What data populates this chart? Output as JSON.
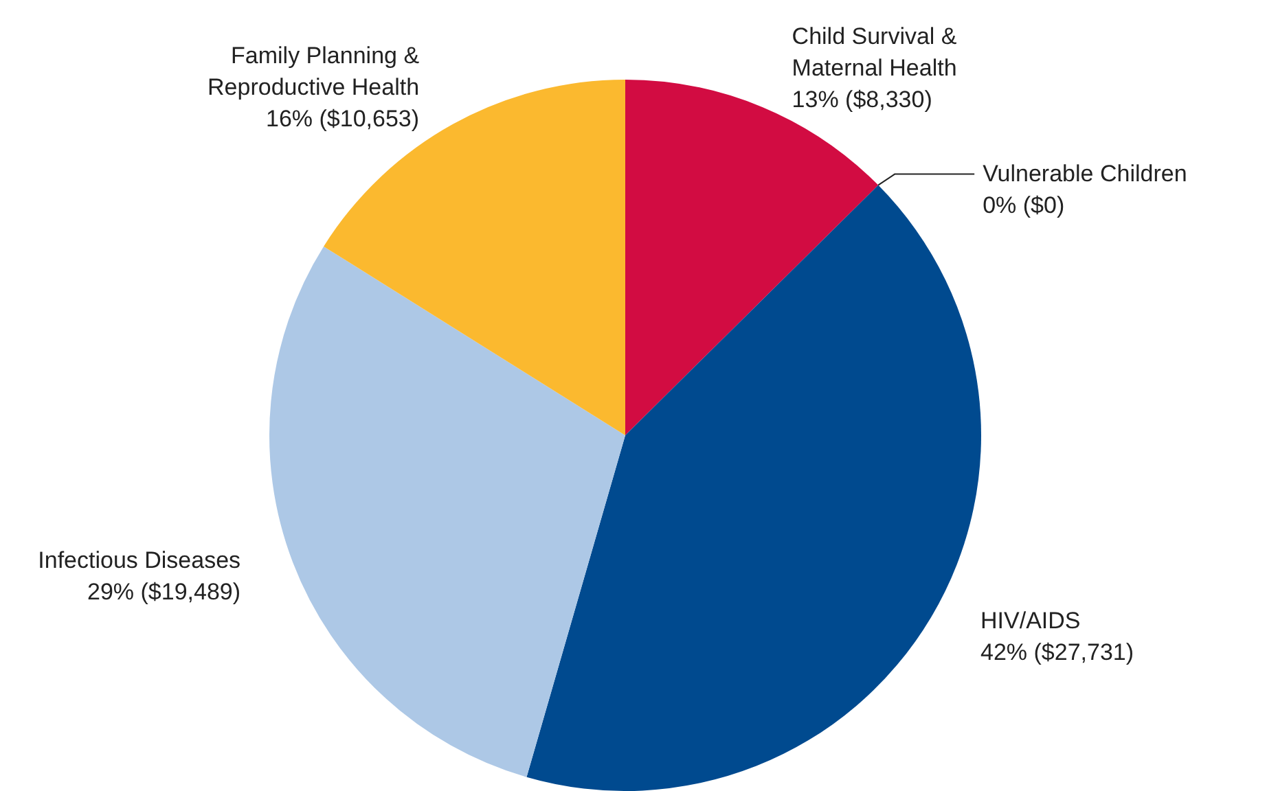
{
  "chart_data": {
    "type": "pie",
    "categories": [
      "Child Survival & Maternal Health",
      "Vulnerable Children",
      "HIV/AIDS",
      "Infectious Diseases",
      "Family Planning & Reproductive Health"
    ],
    "values": [
      8330,
      0,
      27731,
      19489,
      10653
    ],
    "colors": [
      "#d20c42",
      "#7f7f7f",
      "#004a8f",
      "#adc8e6",
      "#fbb92f"
    ],
    "value_labels": [
      "13% ($8,330)",
      "0% ($0)",
      "42% ($27,731)",
      "29% ($19,489)",
      "16% ($10,653)"
    ]
  }
}
